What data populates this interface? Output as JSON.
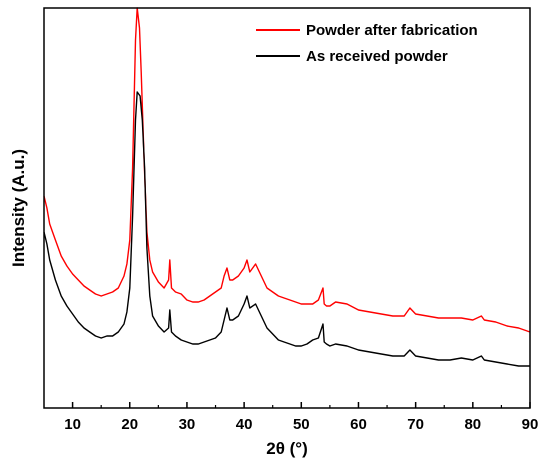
{
  "chart_data": {
    "type": "line",
    "title": "",
    "xlabel": "2θ (°)",
    "ylabel": "Intensity (A.u.)",
    "xlim": [
      5,
      90
    ],
    "ylim": [
      0,
      1
    ],
    "xticks": [
      10,
      20,
      30,
      40,
      50,
      60,
      70,
      80,
      90
    ],
    "xtick_labels": [
      "10",
      "20",
      "30",
      "40",
      "50",
      "60",
      "70",
      "80",
      "90"
    ],
    "yticks": [],
    "grid": false,
    "legend_position": "top-right",
    "series": [
      {
        "name": "Powder after fabrication",
        "color": "#ff0000",
        "x": [
          5,
          5.5,
          6,
          7,
          8,
          9,
          10,
          11,
          12,
          13,
          14,
          15,
          16,
          17,
          18,
          19,
          19.5,
          20,
          20.5,
          21,
          21.3,
          21.7,
          22,
          22.5,
          23,
          23.5,
          24,
          25,
          26,
          26.8,
          27,
          27.3,
          28,
          29,
          30,
          31,
          32,
          33,
          34,
          35,
          36,
          36.5,
          37,
          37.5,
          38,
          39,
          40,
          40.5,
          41,
          42,
          43,
          44,
          45,
          46,
          47,
          48,
          49,
          50,
          51,
          52,
          53,
          53.8,
          54,
          54.4,
          55,
          56,
          58,
          60,
          62,
          64,
          66,
          68,
          69,
          70,
          72,
          74,
          76,
          78,
          80,
          81.5,
          82,
          84,
          86,
          88,
          90
        ],
        "y": [
          0.53,
          0.5,
          0.46,
          0.42,
          0.38,
          0.355,
          0.335,
          0.32,
          0.305,
          0.295,
          0.285,
          0.28,
          0.285,
          0.29,
          0.3,
          0.33,
          0.36,
          0.42,
          0.6,
          0.92,
          1.0,
          0.95,
          0.84,
          0.62,
          0.44,
          0.37,
          0.34,
          0.315,
          0.3,
          0.32,
          0.37,
          0.3,
          0.29,
          0.285,
          0.27,
          0.265,
          0.265,
          0.27,
          0.28,
          0.29,
          0.3,
          0.33,
          0.35,
          0.32,
          0.32,
          0.33,
          0.35,
          0.37,
          0.34,
          0.36,
          0.33,
          0.3,
          0.29,
          0.28,
          0.275,
          0.27,
          0.265,
          0.26,
          0.26,
          0.26,
          0.27,
          0.3,
          0.26,
          0.255,
          0.255,
          0.265,
          0.26,
          0.245,
          0.24,
          0.235,
          0.23,
          0.23,
          0.25,
          0.235,
          0.23,
          0.225,
          0.225,
          0.225,
          0.22,
          0.23,
          0.22,
          0.215,
          0.205,
          0.2,
          0.19
        ]
      },
      {
        "name": "As received powder",
        "color": "#000000",
        "x": [
          5,
          5.5,
          6,
          7,
          8,
          9,
          10,
          11,
          12,
          13,
          14,
          15,
          16,
          17,
          18,
          19,
          19.5,
          20,
          20.5,
          21,
          21.3,
          21.8,
          22.2,
          22.6,
          23,
          23.5,
          24,
          25,
          26,
          26.8,
          27,
          27.3,
          28,
          29,
          30,
          31,
          32,
          33,
          34,
          35,
          36,
          36.5,
          37,
          37.5,
          38,
          39,
          40,
          40.5,
          41,
          42,
          43,
          44,
          45,
          46,
          47,
          48,
          49,
          50,
          51,
          52,
          53,
          53.8,
          54,
          54.4,
          55,
          56,
          58,
          60,
          62,
          64,
          66,
          68,
          69,
          70,
          72,
          74,
          76,
          78,
          80,
          81.5,
          82,
          84,
          86,
          88,
          90
        ],
        "y": [
          0.44,
          0.41,
          0.37,
          0.32,
          0.28,
          0.255,
          0.235,
          0.215,
          0.2,
          0.19,
          0.18,
          0.175,
          0.18,
          0.18,
          0.19,
          0.21,
          0.24,
          0.3,
          0.48,
          0.72,
          0.79,
          0.78,
          0.72,
          0.6,
          0.4,
          0.28,
          0.23,
          0.205,
          0.19,
          0.2,
          0.245,
          0.19,
          0.18,
          0.17,
          0.165,
          0.16,
          0.16,
          0.165,
          0.17,
          0.175,
          0.19,
          0.22,
          0.25,
          0.22,
          0.22,
          0.23,
          0.26,
          0.28,
          0.25,
          0.26,
          0.23,
          0.2,
          0.185,
          0.17,
          0.165,
          0.16,
          0.155,
          0.155,
          0.16,
          0.17,
          0.175,
          0.21,
          0.165,
          0.16,
          0.155,
          0.16,
          0.155,
          0.145,
          0.14,
          0.135,
          0.13,
          0.13,
          0.145,
          0.13,
          0.125,
          0.12,
          0.12,
          0.125,
          0.12,
          0.13,
          0.12,
          0.115,
          0.11,
          0.105,
          0.105
        ]
      }
    ]
  }
}
